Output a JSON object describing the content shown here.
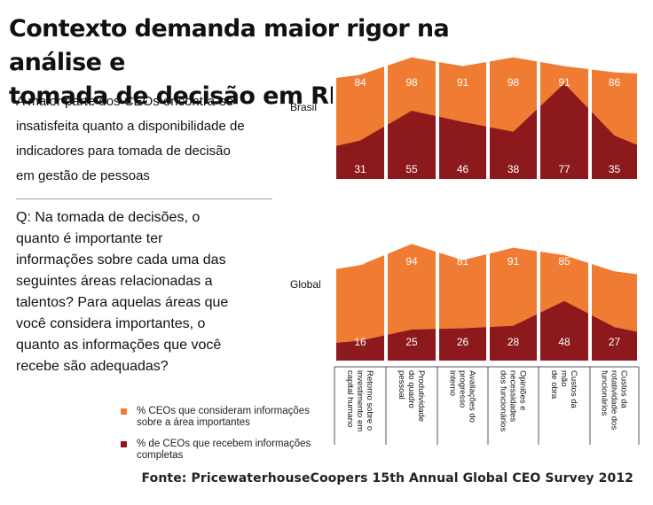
{
  "page": {
    "title_line1": "Contexto demanda maior rigor na análise e",
    "title_line2": "tomada de decisão em RH",
    "lead_line1": "A maior parte dos CEOs encontra-se",
    "lead_line2": "insatisfeita quanto a disponibilidade de",
    "lead_line3": "indicadores para tomada de decisão",
    "lead_line4": "em gestão de pessoas",
    "question_line1": "Q: Na tomada de decisões, o",
    "question_line2": "quanto é importante ter",
    "question_line3": "informações sobre cada uma das",
    "question_line4": "seguintes áreas relacionadas a",
    "question_line5": "talentos? Para aquelas áreas que",
    "question_line6": "você considera importantes, o",
    "question_line7": "quanto as informações que você",
    "question_line8": "recebe são adequadas?",
    "source": "Fonte: PricewaterhouseCoopers 15th Annual Global CEO Survey 2012"
  },
  "legend": {
    "item1_line1": "% CEOs que consideram informações",
    "item1_line2": "sobre a área importantes",
    "item2_line1": "% de CEOs que recebem informações",
    "item2_line2": "completas"
  },
  "colors": {
    "importance": "#f07b32",
    "completeness": "#8c1a1d",
    "separator": "#ffffff"
  },
  "chart_data": {
    "type": "area",
    "categories": [
      [
        "Retorno sobre o",
        "investimento em",
        "capital humano"
      ],
      [
        "Produtividade",
        "do quadro",
        "pessoal"
      ],
      [
        "Avaliações do",
        "progresso",
        "interno"
      ],
      [
        "Opiniões e",
        "necessidades",
        "dos funcionários"
      ],
      [
        "Custos da",
        "mão",
        "de obra"
      ],
      [
        "Custos da",
        "rotatividade dos",
        "funcionários"
      ]
    ],
    "ylim": [
      0,
      100
    ],
    "panels": [
      {
        "label": "Brasil",
        "series": [
          {
            "name": "% CEOs que consideram informações sobre a área importantes",
            "values": [
              84,
              98,
              91,
              98,
              91,
              86
            ]
          },
          {
            "name": "% de CEOs que recebem informações completas",
            "values": [
              31,
              55,
              46,
              38,
              77,
              35
            ]
          }
        ]
      },
      {
        "label": "Global",
        "series": [
          {
            "name": "% CEOs que consideram informações sobre a área importantes",
            "values": [
              77,
              94,
              81,
              91,
              85,
              72
            ]
          },
          {
            "name": "% de CEOs que recebem informações completas",
            "values": [
              16,
              25,
              26,
              28,
              48,
              27
            ]
          }
        ]
      }
    ]
  }
}
